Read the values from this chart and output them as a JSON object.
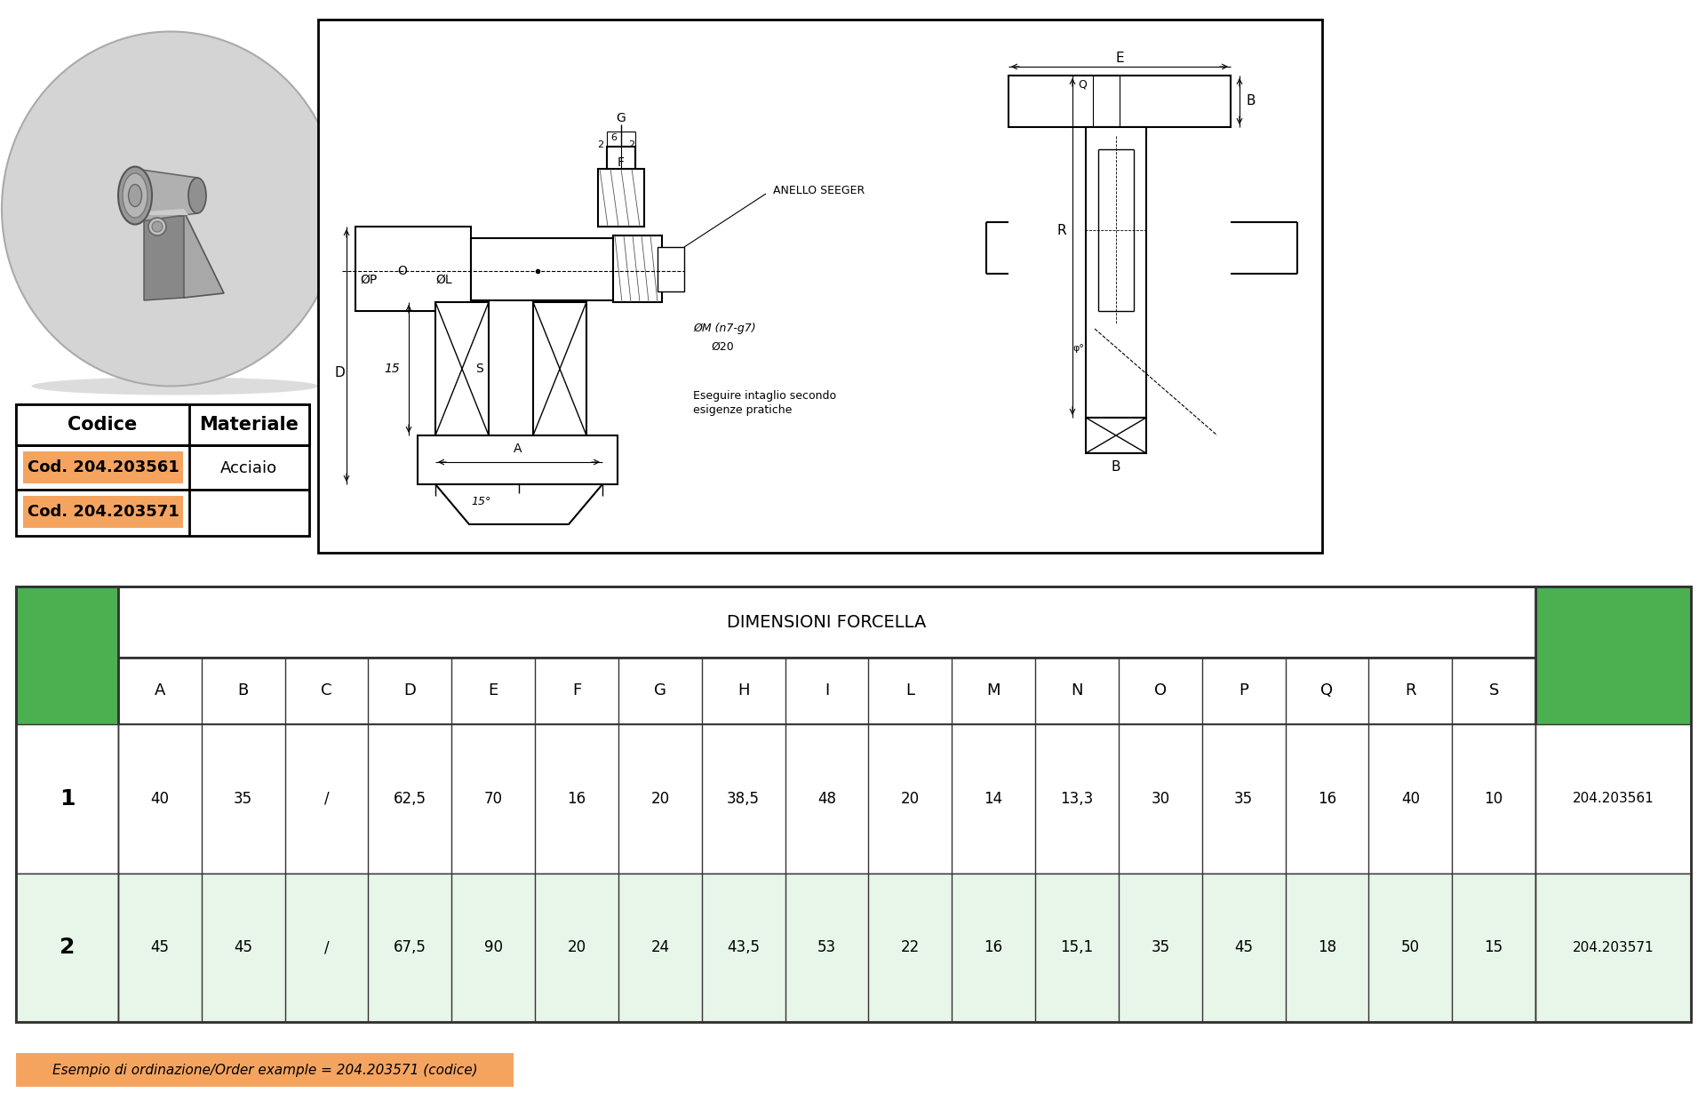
{
  "bg_color": "#ffffff",
  "orange_bg": "#f5a460",
  "code1": "204.203561",
  "code2": "204.203571",
  "material": "Acciaio",
  "col_headers": [
    "A",
    "B",
    "C",
    "D",
    "E",
    "F",
    "G",
    "H",
    "I",
    "L",
    "M",
    "N",
    "O",
    "P",
    "Q",
    "R",
    "S"
  ],
  "row1": [
    "40",
    "35",
    "/",
    "62,5",
    "70",
    "16",
    "20",
    "38,5",
    "48",
    "20",
    "14",
    "13,3",
    "30",
    "35",
    "16",
    "40",
    "10"
  ],
  "row2": [
    "45",
    "45",
    "/",
    "67,5",
    "90",
    "20",
    "24",
    "43,5",
    "53",
    "22",
    "16",
    "15,1",
    "35",
    "45",
    "18",
    "50",
    "15"
  ],
  "codice1": "204.203561",
  "codice2": "204.203571",
  "example_text": "Esempio di ordinazione/Order example = 204.203571 (codice)",
  "green_color": "#4caf50",
  "light_green": "#e8f5e9",
  "table_border": "#333333",
  "gray_circle": "#d4d4d4",
  "drawing_border": "#222222"
}
